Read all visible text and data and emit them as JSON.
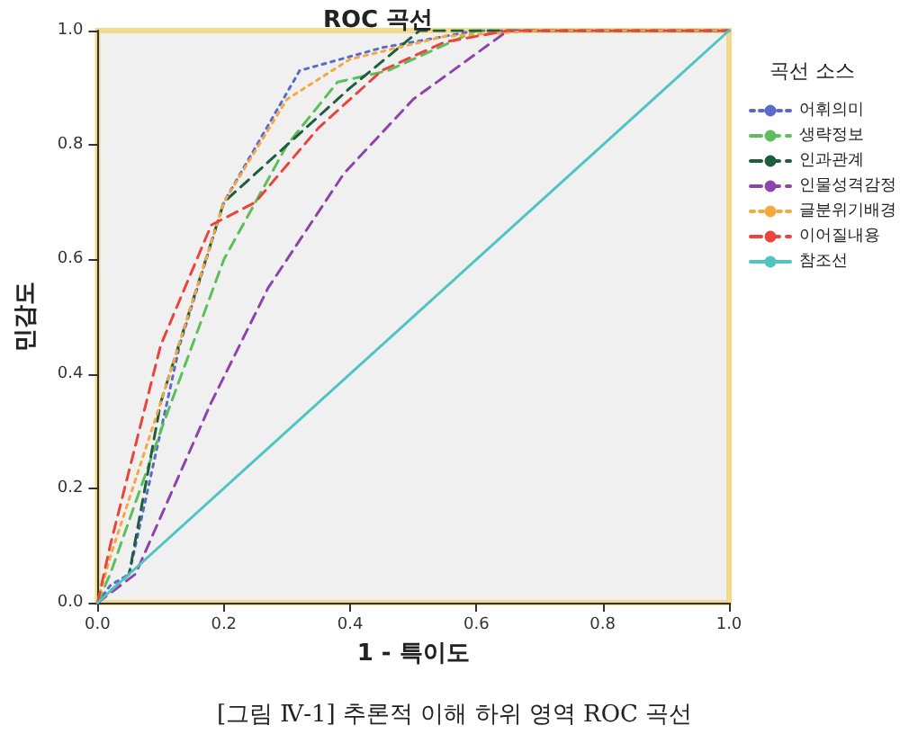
{
  "chart_data": {
    "type": "line",
    "title": "ROC 곡선",
    "xlabel": "1 - 특이도",
    "ylabel": "민감도",
    "legend_title": "곡선 소스",
    "annotations": [
      "[그림 Ⅳ-1] 추론적 이해 하위 영역 ROC 곡선"
    ],
    "xlim": [
      0,
      1
    ],
    "ylim": [
      0,
      1
    ],
    "xticks": [
      {
        "value": 0,
        "label": "0.0"
      },
      {
        "value": 0.2,
        "label": "0.2"
      },
      {
        "value": 0.4,
        "label": "0.4"
      },
      {
        "value": 0.6,
        "label": "0.6"
      },
      {
        "value": 0.8,
        "label": "0.8"
      },
      {
        "value": 1,
        "label": "1.0"
      }
    ],
    "yticks": [
      {
        "value": 0,
        "label": "0.0"
      },
      {
        "value": 0.2,
        "label": "0.2"
      },
      {
        "value": 0.4,
        "label": "0.4"
      },
      {
        "value": 0.6,
        "label": "0.6"
      },
      {
        "value": 0.8,
        "label": "0.8"
      },
      {
        "value": 1,
        "label": "1.0"
      }
    ],
    "grid": false,
    "legend": "right",
    "marker": "none",
    "series": [
      {
        "name": "어휘의미",
        "color": "#5b6bc9",
        "line_style": "dotted",
        "x": [
          0,
          0.02,
          0.05,
          0.13,
          0.2,
          0.32,
          0.45,
          0.6,
          1
        ],
        "values": [
          0,
          0.03,
          0.05,
          0.45,
          0.7,
          0.93,
          0.97,
          1,
          1
        ]
      },
      {
        "name": "생략정보",
        "color": "#5cbf5c",
        "line_style": "dashed",
        "x": [
          0,
          0.02,
          0.1,
          0.2,
          0.3,
          0.38,
          0.46,
          0.6,
          1
        ],
        "values": [
          0,
          0.05,
          0.3,
          0.6,
          0.8,
          0.91,
          0.93,
          1,
          1
        ]
      },
      {
        "name": "인과관계",
        "color": "#1e5e3c",
        "line_style": "dashed",
        "x": [
          0,
          0.05,
          0.1,
          0.2,
          0.3,
          0.4,
          0.51,
          1
        ],
        "values": [
          0,
          0.05,
          0.35,
          0.7,
          0.8,
          0.9,
          1,
          1
        ]
      },
      {
        "name": "인물성격감정",
        "color": "#8e44ad",
        "line_style": "dashed",
        "x": [
          0,
          0.06,
          0.18,
          0.27,
          0.39,
          0.5,
          0.65,
          1
        ],
        "values": [
          0,
          0.05,
          0.35,
          0.55,
          0.75,
          0.88,
          1,
          1
        ]
      },
      {
        "name": "글분위기배경",
        "color": "#f5a742",
        "line_style": "dotted",
        "x": [
          0,
          0.02,
          0.1,
          0.2,
          0.3,
          0.4,
          0.55,
          0.7,
          1
        ],
        "values": [
          0,
          0.08,
          0.35,
          0.7,
          0.88,
          0.95,
          0.99,
          1,
          1
        ]
      },
      {
        "name": "이어질내용",
        "color": "#e8453c",
        "line_style": "dashed",
        "x": [
          0,
          0.02,
          0.1,
          0.18,
          0.25,
          0.35,
          0.45,
          0.55,
          0.65,
          1
        ],
        "values": [
          0,
          0.1,
          0.45,
          0.66,
          0.7,
          0.83,
          0.93,
          0.98,
          1,
          1
        ]
      },
      {
        "name": "참조선",
        "color": "#4fc4c4",
        "line_style": "solid",
        "x": [
          0,
          1
        ],
        "values": [
          0,
          1
        ]
      }
    ]
  }
}
